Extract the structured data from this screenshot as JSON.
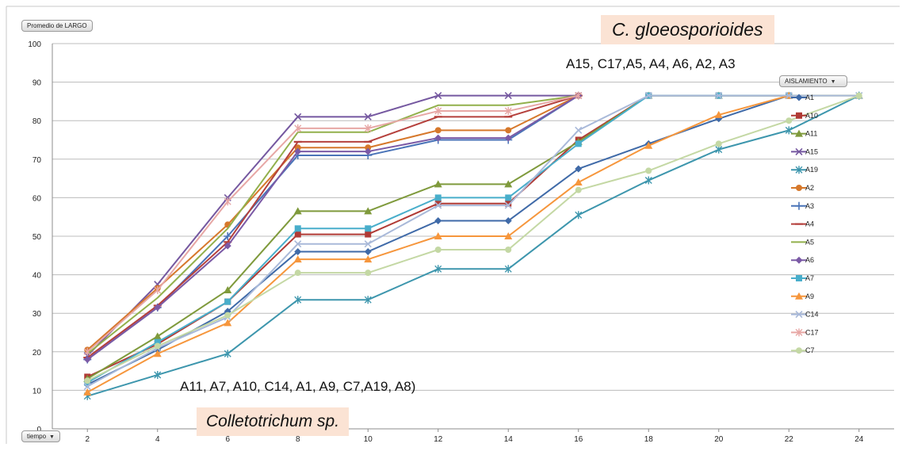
{
  "controls": {
    "value_field": "Promedio de LARGO",
    "series_field": "AISLAMIENTO",
    "axis_field": "tiempo"
  },
  "annotations": {
    "top_species": "C. gloeosporioides",
    "top_isolates": "A15, C17,A5, A4, A6, A2, A3",
    "bottom_isolates": "A11, A7, A10, C14, A1, A9, C7,A19, A8)",
    "bottom_species": "Colletotrichum sp."
  },
  "chart_data": {
    "type": "line",
    "xlabel": "",
    "ylabel": "",
    "x": [
      2,
      4,
      6,
      8,
      10,
      12,
      14,
      16,
      18,
      20,
      22,
      24
    ],
    "ylim": [
      0,
      100
    ],
    "yticks": [
      0,
      10,
      20,
      30,
      40,
      50,
      60,
      70,
      80,
      90,
      100
    ],
    "grid": "horizontal",
    "legend_position": "right",
    "series": [
      {
        "name": "A1",
        "color": "#3f6aa8",
        "marker": "diamond",
        "values": [
          11.5,
          20.5,
          30.5,
          46,
          46,
          54,
          54,
          67.5,
          74,
          80.5,
          86.5,
          null
        ]
      },
      {
        "name": "A10",
        "color": "#b03a35",
        "marker": "square",
        "values": [
          13.5,
          22,
          33,
          50.5,
          50.5,
          58.5,
          58.5,
          75,
          86.5,
          86.5,
          86.5,
          null
        ]
      },
      {
        "name": "A11",
        "color": "#7f9a3c",
        "marker": "triangle",
        "values": [
          13,
          24,
          36,
          56.5,
          56.5,
          63.5,
          63.5,
          74.5,
          86.5,
          86.5,
          86.5,
          86.5
        ]
      },
      {
        "name": "A15",
        "color": "#7558a0",
        "marker": "x",
        "values": [
          19,
          37.5,
          60,
          81,
          81,
          86.5,
          86.5,
          86.5,
          null,
          null,
          null,
          null
        ]
      },
      {
        "name": "A19",
        "color": "#3d96ad",
        "marker": "star",
        "values": [
          8.5,
          14,
          19.5,
          33.5,
          33.5,
          41.5,
          41.5,
          55.5,
          64.5,
          72.5,
          77.5,
          86.5
        ]
      },
      {
        "name": "A2",
        "color": "#d6782b",
        "marker": "circle",
        "values": [
          20.5,
          36.5,
          53,
          73,
          73,
          77.5,
          77.5,
          86.5,
          null,
          null,
          null,
          null
        ]
      },
      {
        "name": "A3",
        "color": "#4a74b8",
        "marker": "plus",
        "values": [
          18,
          31.5,
          50,
          71,
          71,
          75,
          75,
          86.5,
          null,
          null,
          null,
          null
        ]
      },
      {
        "name": "A4",
        "color": "#b5403c",
        "marker": "dash",
        "values": [
          18.5,
          32,
          48.5,
          74.5,
          74.5,
          81,
          81,
          86.5,
          null,
          null,
          null,
          null
        ]
      },
      {
        "name": "A5",
        "color": "#92b04c",
        "marker": "none",
        "values": [
          19.5,
          34,
          52,
          77,
          77,
          84,
          84,
          86.5,
          null,
          null,
          null,
          null
        ]
      },
      {
        "name": "A6",
        "color": "#7b5aa6",
        "marker": "diamond",
        "values": [
          18,
          31.5,
          47.5,
          72,
          72,
          75.5,
          75.5,
          86.5,
          null,
          null,
          null,
          null
        ]
      },
      {
        "name": "A7",
        "color": "#48aecb",
        "marker": "square",
        "values": [
          12,
          22.5,
          33,
          52,
          52,
          60,
          60,
          74,
          86.5,
          86.5,
          86.5,
          null
        ]
      },
      {
        "name": "A9",
        "color": "#f6963c",
        "marker": "triangle",
        "values": [
          9.5,
          19.5,
          27.5,
          44,
          44,
          50,
          50,
          64,
          73.5,
          81.5,
          86.5,
          null
        ]
      },
      {
        "name": "C14",
        "color": "#a9b9d9",
        "marker": "x",
        "values": [
          11,
          21,
          29,
          48,
          48,
          58,
          58,
          77.5,
          86.5,
          86.5,
          86.5,
          86.5
        ]
      },
      {
        "name": "C17",
        "color": "#e7a7a5",
        "marker": "star",
        "values": [
          20,
          36,
          59,
          78,
          78,
          82.5,
          82.5,
          86.5,
          null,
          null,
          null,
          null
        ]
      },
      {
        "name": "C7",
        "color": "#c4d8a4",
        "marker": "circle",
        "values": [
          12.5,
          21.5,
          29.5,
          40.5,
          40.5,
          46.5,
          46.5,
          62,
          67,
          74,
          80,
          86.5
        ]
      }
    ]
  }
}
